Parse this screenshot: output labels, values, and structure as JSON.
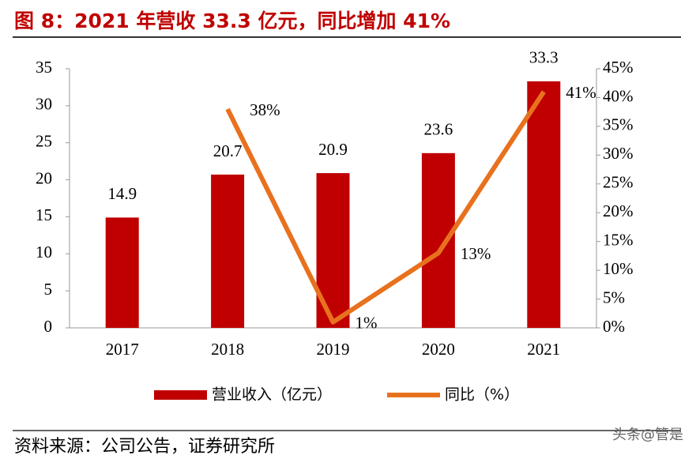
{
  "chart_data": {
    "type": "bar",
    "title": "图 8：2021 年营收 33.3 亿元，同比增加 41%",
    "source": "资料来源：公司公告，证券研究所",
    "watermark": "头条@管是",
    "categories": [
      "2017",
      "2018",
      "2019",
      "2020",
      "2021"
    ],
    "series": [
      {
        "name": "营业收入（亿元）",
        "type": "bar",
        "color": "#c00000",
        "values": [
          14.9,
          20.7,
          20.9,
          23.6,
          33.3
        ]
      },
      {
        "name": "同比（%）",
        "type": "line",
        "axis": "y2",
        "color": "#e8711e",
        "values": [
          null,
          38,
          1,
          13,
          41
        ],
        "value_labels": [
          null,
          "38%",
          "1%",
          "13%",
          "41%"
        ]
      }
    ],
    "ylim": [
      0,
      35
    ],
    "yticks": [
      0,
      5,
      10,
      15,
      20,
      25,
      30,
      35
    ],
    "y2lim": [
      0,
      45
    ],
    "y2ticks": [
      {
        "value": 0,
        "label": "0%"
      },
      {
        "value": 5,
        "label": "5%"
      },
      {
        "value": 10,
        "label": "10%"
      },
      {
        "value": 15,
        "label": "15%"
      },
      {
        "value": 20,
        "label": "20%"
      },
      {
        "value": 25,
        "label": "25%"
      },
      {
        "value": 30,
        "label": "30%"
      },
      {
        "value": 35,
        "label": "35%"
      },
      {
        "value": 40,
        "label": "40%"
      },
      {
        "value": 45,
        "label": "45%"
      }
    ],
    "grid": false,
    "legend": "bottom"
  }
}
